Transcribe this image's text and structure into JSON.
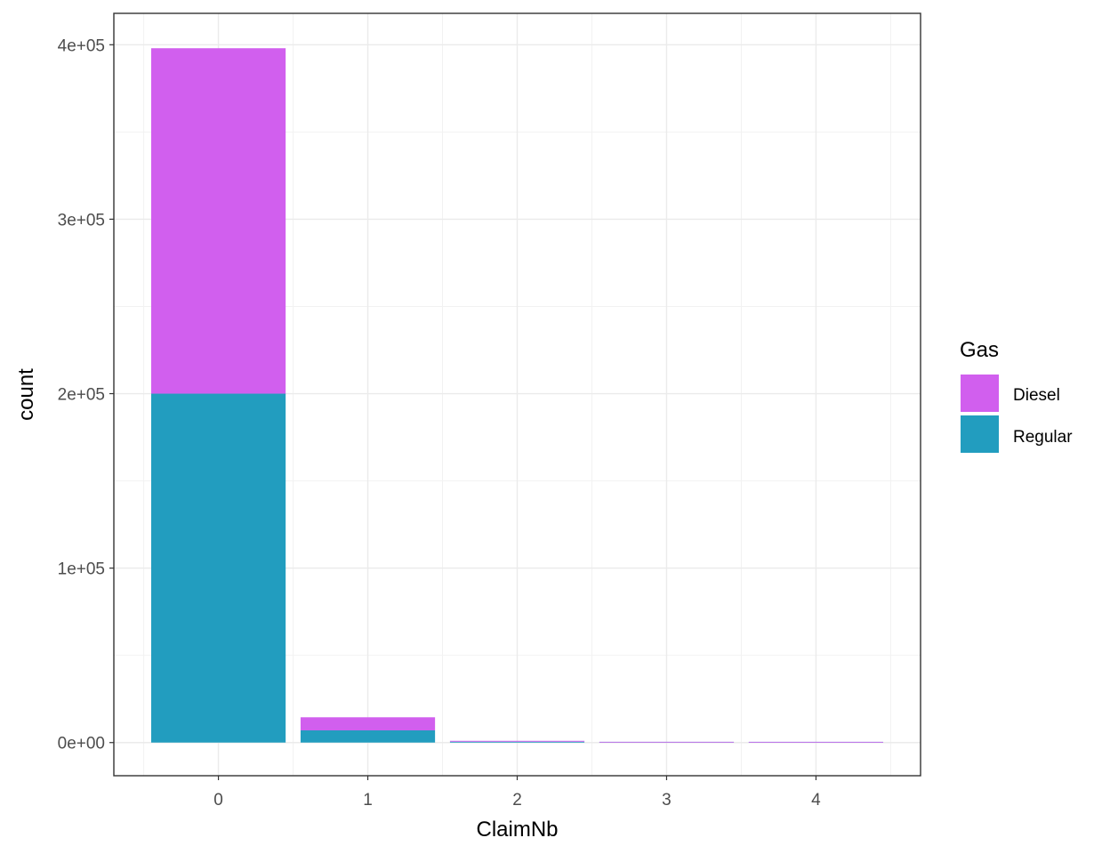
{
  "chart_data": {
    "type": "bar",
    "stacked": true,
    "xlabel": "ClaimNb",
    "ylabel": "count",
    "categories": [
      "0",
      "1",
      "2",
      "3",
      "4"
    ],
    "y_ticks": [
      "0e+00",
      "1e+05",
      "2e+05",
      "3e+05",
      "4e+05"
    ],
    "y_tick_values": [
      0,
      100000,
      200000,
      300000,
      400000
    ],
    "ylim": [
      -19000,
      418000
    ],
    "xlim": [
      -0.7,
      4.7
    ],
    "grid": true,
    "legend": {
      "title": "Gas",
      "position": "right",
      "entries": [
        {
          "label": "Diesel",
          "color": "#D15FEE"
        },
        {
          "label": "Regular",
          "color": "#229DBF"
        }
      ]
    },
    "series": [
      {
        "name": "Regular",
        "color": "#229DBF",
        "values": [
          200000,
          7000,
          500,
          20,
          5
        ]
      },
      {
        "name": "Diesel",
        "color": "#D15FEE",
        "values": [
          198000,
          7500,
          500,
          20,
          5
        ]
      }
    ]
  }
}
